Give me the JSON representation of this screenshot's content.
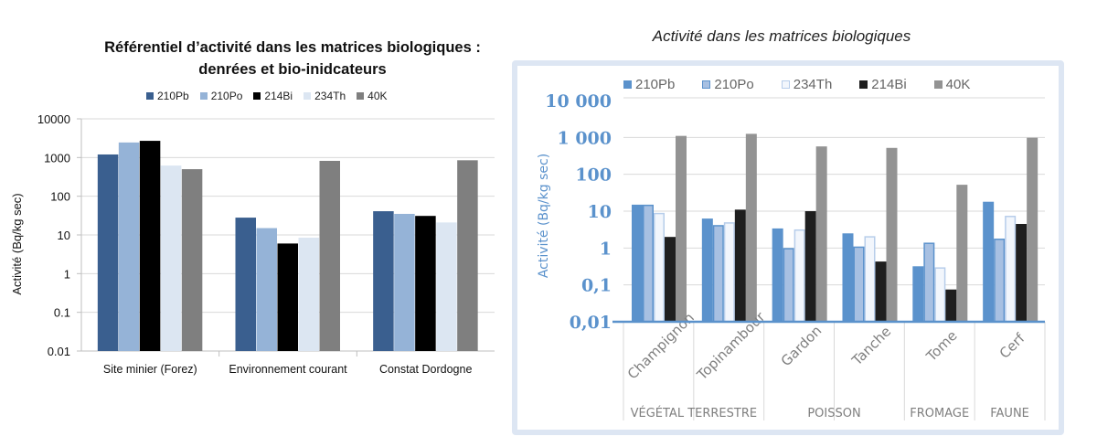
{
  "chart_data": [
    {
      "type": "bar",
      "title": "Référentiel d’activité dans les matrices biologiques : denrées et bio-inidcateurs",
      "title_lines": [
        "Référentiel d’activité dans les matrices biologiques :",
        "denrées et bio-inidcateurs"
      ],
      "xlabel": "",
      "ylabel": "Activité (Bq/kg sec)",
      "yscale": "log",
      "ylim": [
        0.01,
        10000
      ],
      "yticks": [
        "10000",
        "1000",
        "100",
        "10",
        "1",
        "0.1",
        "0.01"
      ],
      "grid": true,
      "legend_position": "top",
      "categories": [
        "Site minier (Forez)",
        "Environnement courant",
        "Constat Dordogne"
      ],
      "series": [
        {
          "name": "210Pb",
          "color": "#3a5f8f",
          "values": [
            1200,
            28,
            41
          ]
        },
        {
          "name": "210Po",
          "color": "#95b3d7",
          "values": [
            2450,
            15,
            35
          ]
        },
        {
          "name": "214Bi",
          "color": "#000000",
          "values": [
            2700,
            6,
            31
          ]
        },
        {
          "name": "234Th",
          "color": "#dce6f2",
          "values": [
            620,
            8.5,
            21
          ]
        },
        {
          "name": "40K",
          "color": "#7f7f7f",
          "values": [
            500,
            820,
            850
          ]
        }
      ]
    },
    {
      "type": "bar",
      "title": "Activité dans les matrices biologiques",
      "xlabel": "",
      "ylabel": "Activité (Bq/kg sec)",
      "yscale": "log",
      "ylim": [
        0.01,
        10000
      ],
      "yticks": [
        "10 000",
        "1 000",
        "100",
        "10",
        "1",
        "0,1",
        "0,01"
      ],
      "grid": true,
      "legend_position": "top",
      "categories": [
        "Champignon",
        "Topinambour",
        "Gardon",
        "Tanche",
        "Tome",
        "Cerf"
      ],
      "category_groups": [
        {
          "label": "VÉGÉTAL TERRESTRE",
          "span": 2
        },
        {
          "label": "POISSON",
          "span": 2
        },
        {
          "label": "FROMAGE",
          "span": 1
        },
        {
          "label": "FAUNE",
          "span": 1
        }
      ],
      "series": [
        {
          "name": "210Pb",
          "color": "#5b92cc",
          "border": "#5b92cc",
          "values": [
            15,
            6.3,
            3.4,
            2.5,
            0.32,
            18
          ]
        },
        {
          "name": "210Po",
          "color": "#a7c0e2",
          "border": "#5b92cc",
          "values": [
            15,
            4.2,
            1.0,
            1.1,
            1.4,
            1.8
          ]
        },
        {
          "name": "234Th",
          "color": "#f2f6fc",
          "border": "#b7cdea",
          "values": [
            9,
            5,
            3.2,
            2.1,
            0.3,
            7.5
          ]
        },
        {
          "name": "214Bi",
          "color": "#1f1f1f",
          "border": "#1f1f1f",
          "values": [
            2,
            11,
            10,
            0.43,
            0.075,
            4.5
          ]
        },
        {
          "name": "40K",
          "color": "#939393",
          "border": "#939393",
          "values": [
            1100,
            1250,
            570,
            520,
            52,
            980
          ]
        }
      ]
    }
  ]
}
